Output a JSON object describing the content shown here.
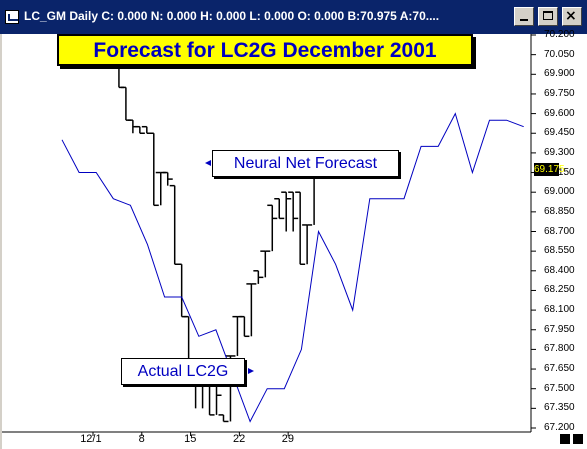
{
  "window": {
    "title": "LC_GM Daily C: 0.000 N: 0.000 H: 0.000 L: 0.000 O: 0.000 B:70.975 A:70....",
    "buttons": {
      "minimize": "minimize",
      "maximize": "maximize",
      "close": "×"
    }
  },
  "annotations": {
    "forecast_label": "Neural Net Forecast",
    "actual_label": "Actual LC2G"
  },
  "current_price": "69.175",
  "colors": {
    "title_bg": "#ffff00",
    "title_text": "#0000c0",
    "forecast_line": "#0000c0",
    "bars": "#000000"
  },
  "chart_data": {
    "type": "line",
    "title": "Forecast for LC2G December 2001",
    "xlabel": "",
    "ylabel": "",
    "x_ticks": [
      "12/1",
      "8",
      "15",
      "22",
      "29"
    ],
    "y_ticks": [
      "70.200",
      "70.050",
      "69.900",
      "69.750",
      "69.600",
      "69.450",
      "69.300",
      "69.150",
      "69.000",
      "68.850",
      "68.700",
      "68.550",
      "68.400",
      "68.250",
      "68.100",
      "67.950",
      "67.800",
      "67.650",
      "67.500",
      "67.350",
      "67.200"
    ],
    "ylim": [
      67.2,
      70.2
    ],
    "series": [
      {
        "name": "Neural Net Forecast",
        "kind": "line",
        "values": [
          69.4,
          69.15,
          69.15,
          68.95,
          68.9,
          68.6,
          68.2,
          68.2,
          67.9,
          67.95,
          67.6,
          67.25,
          67.5,
          67.5,
          67.8,
          68.7,
          68.45,
          68.1,
          68.95,
          68.95,
          68.95,
          69.35,
          69.35,
          69.6,
          69.15,
          69.55,
          69.55,
          69.5
        ]
      },
      {
        "name": "Actual LC2G",
        "kind": "hlc-bars",
        "bars": [
          {
            "day": 3,
            "high": 70.0,
            "low": 69.8,
            "close": 69.8
          },
          {
            "day": 4,
            "high": 69.8,
            "low": 69.55,
            "close": 69.55
          },
          {
            "day": 5,
            "high": 69.55,
            "low": 69.45,
            "close": 69.5
          },
          {
            "day": 6,
            "high": 69.5,
            "low": 69.45,
            "close": 69.45
          },
          {
            "day": 7,
            "high": 69.5,
            "low": 69.45,
            "close": 69.45
          },
          {
            "day": 8,
            "high": 69.45,
            "low": 68.9,
            "close": 68.9
          },
          {
            "day": 9,
            "high": 69.15,
            "low": 68.9,
            "close": 69.15
          },
          {
            "day": 10,
            "high": 69.15,
            "low": 69.05,
            "close": 69.1
          },
          {
            "day": 11,
            "high": 69.05,
            "low": 68.45,
            "close": 68.45
          },
          {
            "day": 12,
            "high": 68.45,
            "low": 68.05,
            "close": 68.05
          },
          {
            "day": 13,
            "high": 68.05,
            "low": 67.6,
            "close": 67.6
          },
          {
            "day": 14,
            "high": 67.6,
            "low": 67.35,
            "close": 67.55
          },
          {
            "day": 15,
            "high": 67.55,
            "low": 67.35,
            "close": 67.55
          },
          {
            "day": 16,
            "high": 67.55,
            "low": 67.3,
            "close": 67.3
          },
          {
            "day": 17,
            "high": 67.6,
            "low": 67.3,
            "close": 67.45
          },
          {
            "day": 18,
            "high": 67.3,
            "low": 67.25,
            "close": 67.25
          },
          {
            "day": 19,
            "high": 67.75,
            "low": 67.25,
            "close": 67.75
          },
          {
            "day": 20,
            "high": 68.05,
            "low": 67.75,
            "close": 68.05
          },
          {
            "day": 21,
            "high": 68.05,
            "low": 67.9,
            "close": 67.9
          },
          {
            "day": 22,
            "high": 68.3,
            "low": 67.9,
            "close": 68.3
          },
          {
            "day": 23,
            "high": 68.4,
            "low": 68.3,
            "close": 68.35
          },
          {
            "day": 24,
            "high": 68.55,
            "low": 68.35,
            "close": 68.55
          },
          {
            "day": 25,
            "high": 68.9,
            "low": 68.55,
            "close": 68.8
          },
          {
            "day": 26,
            "high": 68.95,
            "low": 68.8,
            "close": 68.8
          },
          {
            "day": 27,
            "high": 69.0,
            "low": 68.7,
            "close": 68.95
          },
          {
            "day": 28,
            "high": 69.0,
            "low": 68.7,
            "close": 68.8
          },
          {
            "day": 29,
            "high": 69.0,
            "low": 68.45,
            "close": 68.45
          },
          {
            "day": 30,
            "high": 68.75,
            "low": 68.45,
            "close": 68.75
          },
          {
            "day": 31,
            "high": 69.175,
            "low": 68.75,
            "close": 69.175
          }
        ]
      }
    ],
    "grid": false,
    "legend": "none"
  }
}
